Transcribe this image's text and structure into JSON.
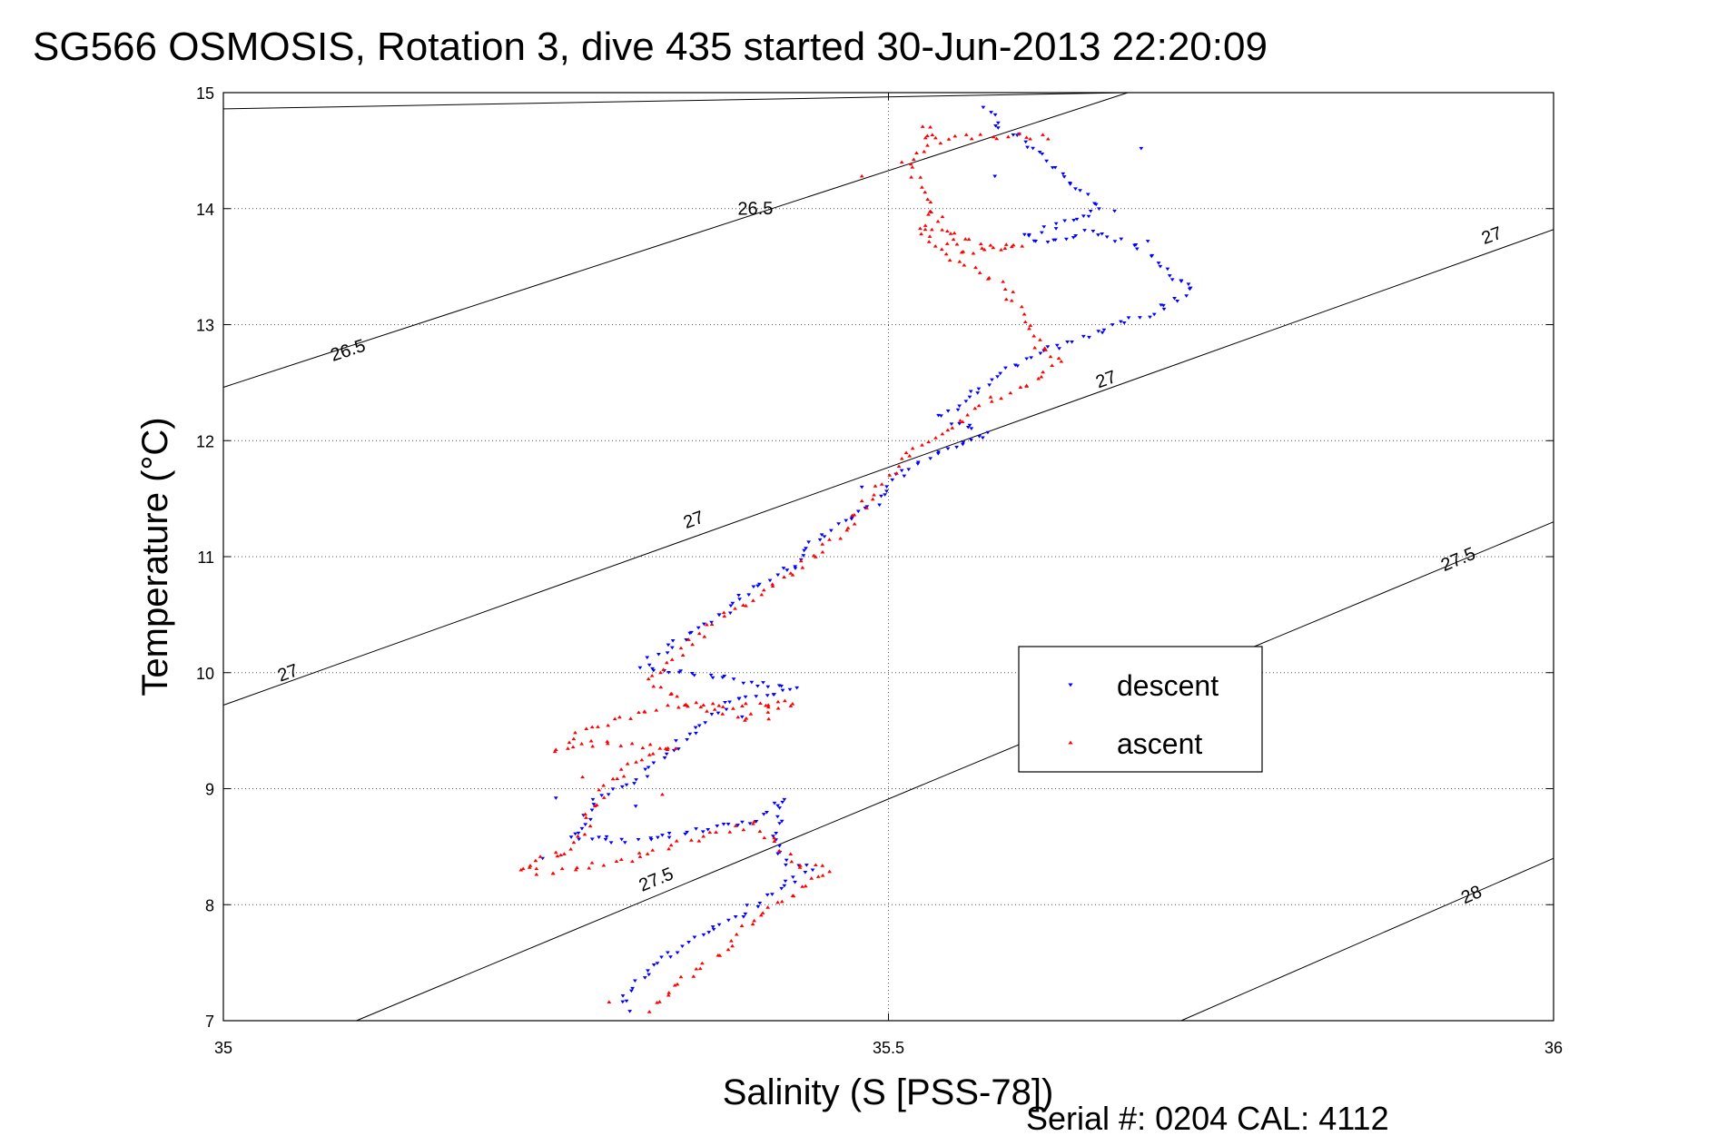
{
  "chart_data": {
    "type": "scatter",
    "title": "SG566 OSMOSIS, Rotation 3, dive 435 started 30-Jun-2013 22:20:09",
    "xlabel": "Salinity (S [PSS-78])",
    "ylabel": "Temperature (°C)",
    "xlim": [
      35,
      36
    ],
    "ylim": [
      7,
      15
    ],
    "x_ticks": [
      "35",
      "35.5",
      "36"
    ],
    "y_ticks": [
      "7",
      "8",
      "9",
      "10",
      "11",
      "12",
      "13",
      "14",
      "15"
    ],
    "grid": true,
    "legend_position": "center-right",
    "footer": "Serial #: 0204  CAL: 4112",
    "density_contours": [
      {
        "label": "26.5",
        "points": [
          [
            35.0,
            14.86
          ],
          [
            35.68,
            15.0
          ]
        ],
        "label_at": [
          [
            35.4,
            13.95
          ]
        ]
      },
      {
        "label": "26.5",
        "points": [
          [
            35.0,
            12.46
          ],
          [
            35.68,
            15.0
          ]
        ],
        "label_at": [
          [
            35.095,
            12.73
          ]
        ]
      },
      {
        "label": "27",
        "points": [
          [
            35.0,
            9.72
          ],
          [
            36.0,
            13.82
          ]
        ],
        "label_at": [
          [
            35.05,
            9.95
          ],
          [
            35.355,
            11.27
          ],
          [
            35.665,
            12.48
          ],
          [
            35.955,
            13.72
          ]
        ]
      },
      {
        "label": "27.5",
        "points": [
          [
            35.1,
            7.0
          ],
          [
            36.0,
            11.3
          ]
        ],
        "label_at": [
          [
            35.327,
            8.17
          ],
          [
            35.93,
            10.93
          ]
        ]
      },
      {
        "label": "28",
        "points": [
          [
            35.72,
            7.0
          ],
          [
            36.0,
            8.4
          ]
        ],
        "label_at": [
          [
            35.94,
            8.04
          ]
        ]
      }
    ],
    "series": [
      {
        "name": "descent",
        "color": "#0000ff",
        "marker": "triangle-down",
        "path": [
          [
            35.572,
            14.88
          ],
          [
            35.585,
            14.68
          ],
          [
            35.6,
            14.62
          ],
          [
            35.66,
            14.0
          ],
          [
            35.64,
            13.92
          ],
          [
            35.615,
            13.82
          ],
          [
            35.6,
            13.75
          ],
          [
            35.62,
            13.7
          ],
          [
            35.65,
            13.8
          ],
          [
            35.68,
            13.72
          ],
          [
            35.73,
            13.3
          ],
          [
            35.7,
            13.1
          ],
          [
            35.66,
            12.95
          ],
          [
            35.61,
            12.75
          ],
          [
            35.58,
            12.55
          ],
          [
            35.56,
            12.35
          ],
          [
            35.54,
            12.2
          ],
          [
            35.575,
            12.05
          ],
          [
            35.55,
            11.98
          ],
          [
            35.51,
            11.72
          ],
          [
            35.49,
            11.45
          ],
          [
            35.45,
            11.2
          ],
          [
            35.43,
            10.95
          ],
          [
            35.4,
            10.75
          ],
          [
            35.38,
            10.55
          ],
          [
            35.345,
            10.3
          ],
          [
            35.315,
            10.05
          ],
          [
            35.4,
            9.9
          ],
          [
            35.43,
            9.85
          ],
          [
            35.38,
            9.75
          ],
          [
            35.36,
            9.55
          ],
          [
            35.34,
            9.35
          ],
          [
            35.32,
            9.15
          ],
          [
            35.28,
            8.9
          ],
          [
            35.27,
            8.7
          ],
          [
            35.26,
            8.6
          ],
          [
            35.3,
            8.55
          ],
          [
            35.35,
            8.62
          ],
          [
            35.4,
            8.72
          ],
          [
            35.42,
            8.9
          ],
          [
            35.415,
            8.55
          ],
          [
            35.42,
            8.4
          ],
          [
            35.44,
            8.3
          ],
          [
            35.42,
            8.15
          ],
          [
            35.4,
            8.0
          ],
          [
            35.37,
            7.8
          ],
          [
            35.34,
            7.6
          ],
          [
            35.32,
            7.45
          ],
          [
            35.3,
            7.2
          ],
          [
            35.31,
            7.08
          ]
        ],
        "scatter": [
          [
            35.58,
            14.28
          ],
          [
            35.67,
            13.98
          ],
          [
            35.695,
            13.72
          ],
          [
            35.72,
            13.38
          ],
          [
            35.69,
            14.52
          ],
          [
            35.48,
            11.6
          ],
          [
            35.43,
            10.9
          ],
          [
            35.39,
            9.62
          ],
          [
            35.31,
            8.85
          ],
          [
            35.33,
            8.6
          ],
          [
            35.24,
            8.4
          ],
          [
            35.25,
            8.92
          ]
        ],
        "n_points": 340
      },
      {
        "name": "ascent",
        "color": "#ff0000",
        "marker": "triangle-up",
        "path": [
          [
            35.32,
            7.08
          ],
          [
            35.33,
            7.2
          ],
          [
            35.35,
            7.4
          ],
          [
            35.38,
            7.65
          ],
          [
            35.4,
            7.9
          ],
          [
            35.43,
            8.1
          ],
          [
            35.455,
            8.3
          ],
          [
            35.43,
            8.35
          ],
          [
            35.41,
            8.6
          ],
          [
            35.4,
            8.7
          ],
          [
            35.35,
            8.55
          ],
          [
            35.31,
            8.4
          ],
          [
            35.26,
            8.3
          ],
          [
            35.24,
            8.28
          ],
          [
            35.22,
            8.32
          ],
          [
            35.26,
            8.45
          ],
          [
            35.28,
            8.85
          ],
          [
            35.29,
            9.05
          ],
          [
            35.31,
            9.25
          ],
          [
            35.34,
            9.35
          ],
          [
            35.28,
            9.4
          ],
          [
            35.25,
            9.32
          ],
          [
            35.27,
            9.5
          ],
          [
            35.31,
            9.65
          ],
          [
            35.34,
            9.72
          ],
          [
            35.38,
            9.7
          ],
          [
            35.43,
            9.75
          ],
          [
            35.39,
            9.6
          ],
          [
            35.34,
            9.78
          ],
          [
            35.32,
            9.95
          ],
          [
            35.34,
            10.15
          ],
          [
            35.36,
            10.35
          ],
          [
            35.38,
            10.5
          ],
          [
            35.41,
            10.72
          ],
          [
            35.43,
            10.9
          ],
          [
            35.46,
            11.15
          ],
          [
            35.48,
            11.4
          ],
          [
            35.5,
            11.7
          ],
          [
            35.52,
            11.95
          ],
          [
            35.56,
            12.2
          ],
          [
            35.58,
            12.35
          ],
          [
            35.61,
            12.52
          ],
          [
            35.63,
            12.68
          ],
          [
            35.615,
            12.85
          ],
          [
            35.6,
            13.05
          ],
          [
            35.59,
            13.3
          ],
          [
            35.56,
            13.5
          ],
          [
            35.54,
            13.62
          ],
          [
            35.53,
            13.75
          ],
          [
            35.52,
            13.85
          ],
          [
            35.58,
            13.68
          ],
          [
            35.6,
            13.7
          ],
          [
            35.565,
            13.62
          ],
          [
            35.55,
            13.65
          ],
          [
            35.515,
            14.38
          ],
          [
            35.525,
            14.5
          ],
          [
            35.53,
            14.72
          ],
          [
            35.54,
            14.58
          ],
          [
            35.55,
            14.62
          ],
          [
            35.62,
            14.62
          ]
        ],
        "scatter": [
          [
            35.48,
            14.28
          ],
          [
            35.51,
            14.4
          ],
          [
            35.53,
            13.95
          ],
          [
            35.62,
            14.6
          ],
          [
            35.61,
            12.8
          ],
          [
            35.41,
            9.6
          ],
          [
            35.27,
            9.1
          ],
          [
            35.25,
            8.45
          ],
          [
            35.29,
            7.16
          ],
          [
            35.33,
            8.95
          ]
        ],
        "n_points": 340
      }
    ],
    "legend": [
      {
        "label": "descent",
        "color": "#0000ff",
        "marker": "triangle-down"
      },
      {
        "label": "ascent",
        "color": "#ff0000",
        "marker": "triangle-up"
      }
    ]
  }
}
